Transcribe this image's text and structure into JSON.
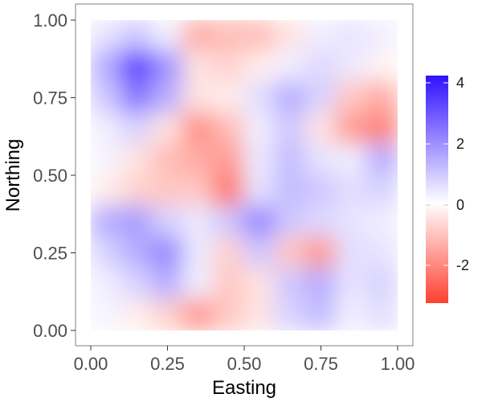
{
  "chart_data": {
    "type": "heatmap",
    "title": "",
    "xlabel": "Easting",
    "ylabel": "Northing",
    "xlim": [
      0,
      1
    ],
    "ylim": [
      0,
      1
    ],
    "x_ticks": [
      "0.00",
      "0.25",
      "0.50",
      "0.75",
      "1.00"
    ],
    "y_ticks": [
      "0.00",
      "0.25",
      "0.50",
      "0.75",
      "1.00"
    ],
    "x_tick_values": [
      0,
      0.25,
      0.5,
      0.75,
      1
    ],
    "y_tick_values": [
      0,
      0.25,
      0.5,
      0.75,
      1
    ],
    "grid": false,
    "legend": {
      "placement": "right",
      "type": "colorbar",
      "range": [
        -3.4,
        4.3
      ],
      "ticks": [
        -2,
        0,
        2,
        4
      ],
      "tick_labels": [
        "-2",
        "0",
        "2",
        "4"
      ],
      "colors": {
        "low": "#ff4030",
        "mid": "#ffffff",
        "high": "#3010ff"
      }
    },
    "grid_resolution": [
      10,
      10
    ],
    "x": [
      0.05,
      0.15,
      0.25,
      0.35,
      0.45,
      0.55,
      0.65,
      0.75,
      0.85,
      0.95
    ],
    "y": [
      0.95,
      0.85,
      0.75,
      0.65,
      0.55,
      0.45,
      0.35,
      0.25,
      0.15,
      0.05
    ],
    "values": [
      [
        0.5,
        1.0,
        0.3,
        -1.5,
        -1.2,
        -1.2,
        -0.5,
        0.3,
        0.5,
        0.3
      ],
      [
        1.5,
        3.5,
        2.0,
        -0.5,
        -0.8,
        -0.3,
        0.3,
        0.7,
        0.4,
        -0.2
      ],
      [
        1.0,
        2.5,
        1.5,
        -0.5,
        -0.3,
        0.6,
        1.5,
        0.8,
        -1.0,
        -1.5
      ],
      [
        0.3,
        0.8,
        -0.5,
        -2.0,
        -1.2,
        0.3,
        1.0,
        -0.5,
        -1.8,
        -2.2
      ],
      [
        0.2,
        -0.5,
        -1.2,
        -1.5,
        -1.8,
        0.4,
        1.2,
        0.5,
        0.3,
        1.5
      ],
      [
        -0.3,
        -0.8,
        -1.0,
        -1.0,
        -2.5,
        0.5,
        1.2,
        1.0,
        0.6,
        0.8
      ],
      [
        1.5,
        1.8,
        0.8,
        0.4,
        1.0,
        2.2,
        1.0,
        0.7,
        0.5,
        0.3
      ],
      [
        0.8,
        1.5,
        2.2,
        0.4,
        -0.8,
        1.0,
        -1.0,
        -1.8,
        0.6,
        0.5
      ],
      [
        0.3,
        0.8,
        1.5,
        0.3,
        -1.0,
        -0.5,
        1.0,
        1.5,
        0.5,
        0.8
      ],
      [
        0.2,
        -0.3,
        -0.8,
        -1.8,
        -1.0,
        -0.5,
        0.8,
        1.2,
        0.3,
        0.6
      ]
    ]
  }
}
